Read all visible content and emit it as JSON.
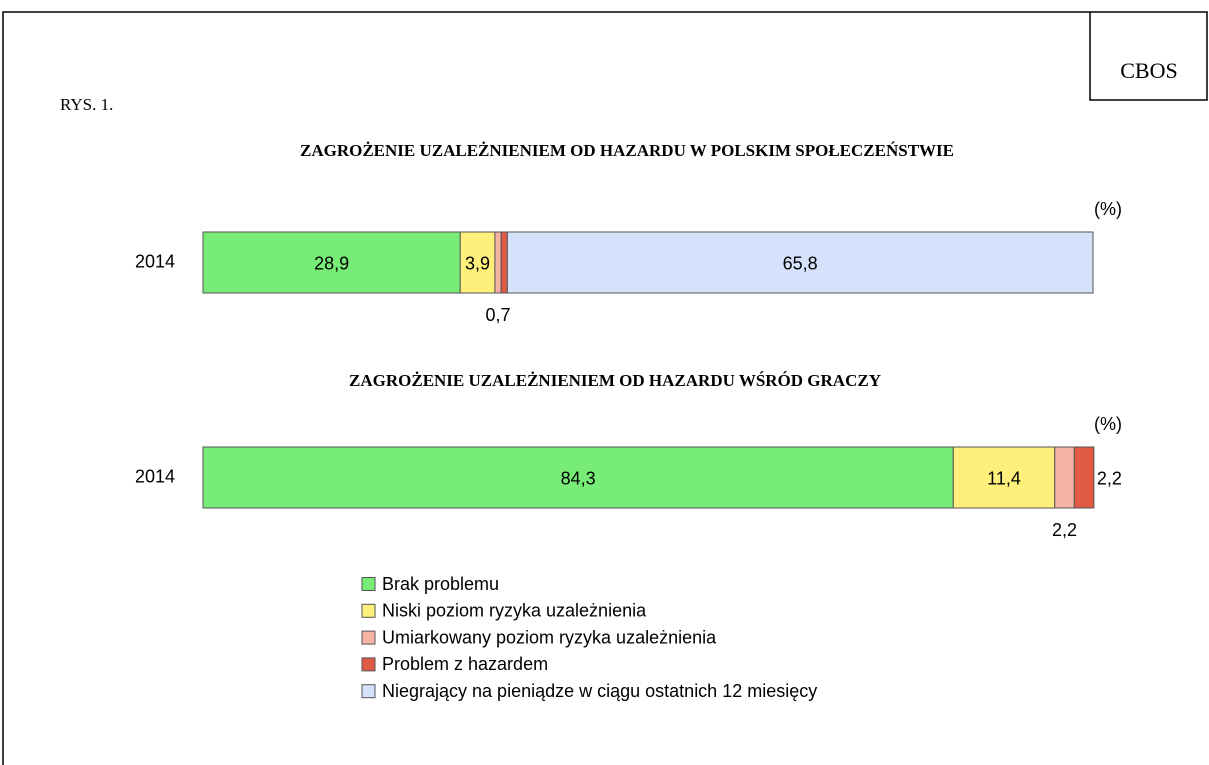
{
  "header": {
    "brand": "CBOS",
    "figure": "RYS. 1."
  },
  "chart_data": [
    {
      "type": "bar",
      "orientation": "horizontal",
      "stacked": true,
      "title": "ZAGROŻENIE UZALEŻNIENIEM OD HAZARDU W POLSKIM  SPOŁECZEŃSTWIE",
      "unit_label": "(%)",
      "categories": [
        "2014"
      ],
      "xlim": [
        0,
        100
      ],
      "series": [
        {
          "name": "Brak problemu",
          "color": "#77ec77",
          "values": [
            28.9
          ],
          "value_labels": [
            "28,9"
          ]
        },
        {
          "name": "Niski poziom ryzyka uzależnienia",
          "color": "#fef07a",
          "values": [
            3.9
          ],
          "value_labels": [
            "3,9"
          ]
        },
        {
          "name": "Umiarkowany poziom ryzyka uzależnienia",
          "color": "#f5b3a4",
          "values": [
            0.7
          ],
          "value_labels": [
            "0,7"
          ]
        },
        {
          "name": "Problem z hazardem",
          "color": "#e05a44",
          "values": [
            0.7
          ],
          "value_labels": [
            "0,7"
          ]
        },
        {
          "name": "Niegrający na pieniądze w ciągu ostatnich 12 miesięcy",
          "color": "#d4e2fc",
          "values": [
            65.8
          ],
          "value_labels": [
            "65,8"
          ]
        }
      ]
    },
    {
      "type": "bar",
      "orientation": "horizontal",
      "stacked": true,
      "title": "ZAGROŻENIE UZALEŻNIENIEM OD HAZARDU WŚRÓD GRACZY",
      "unit_label": "(%)",
      "categories": [
        "2014"
      ],
      "xlim": [
        0,
        100
      ],
      "series": [
        {
          "name": "Brak problemu",
          "color": "#77ec77",
          "values": [
            84.3
          ],
          "value_labels": [
            "84,3"
          ]
        },
        {
          "name": "Niski poziom ryzyka uzależnienia",
          "color": "#fef07a",
          "values": [
            11.4
          ],
          "value_labels": [
            "11,4"
          ]
        },
        {
          "name": "Umiarkowany poziom ryzyka uzależnienia",
          "color": "#f5b3a4",
          "values": [
            2.2
          ],
          "value_labels": [
            "2,2"
          ]
        },
        {
          "name": "Problem z hazardem",
          "color": "#e05a44",
          "values": [
            2.2
          ],
          "value_labels": [
            "2,2"
          ]
        }
      ]
    }
  ]
}
